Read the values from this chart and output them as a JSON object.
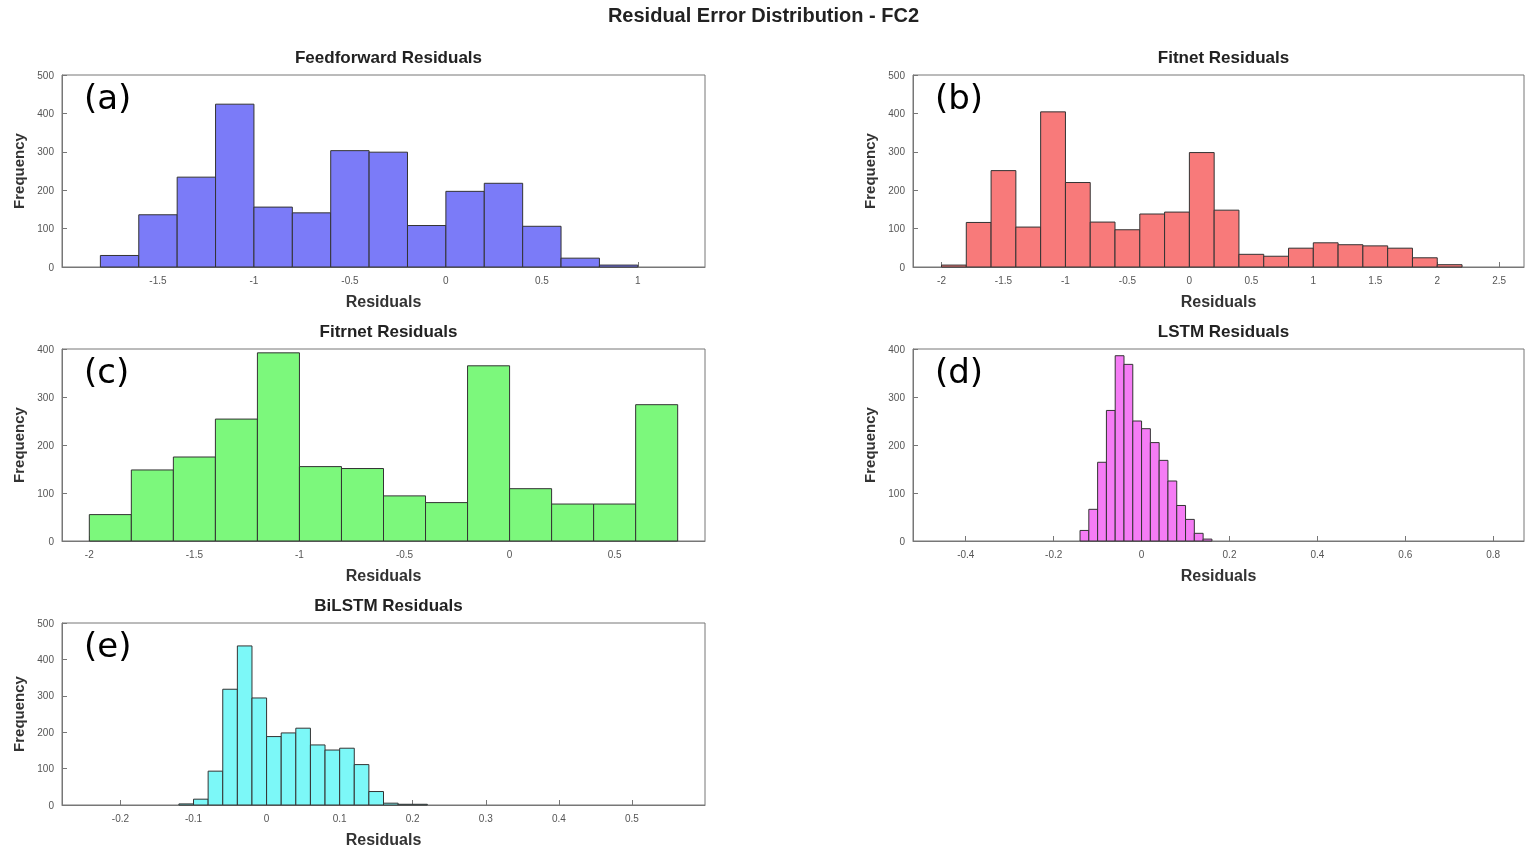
{
  "chart_data": [
    {
      "type": "histogram",
      "title": "Feedforward Residuals",
      "xlabel": "Residuals",
      "ylabel": "Frequency",
      "annotations": [
        "Residual Error Distribution - FC2",
        "(a)"
      ],
      "bins": [
        -1.8,
        -1.6,
        -1.4,
        -1.2,
        -1.0,
        -0.8,
        -0.6,
        -0.4,
        -0.2,
        0,
        0.2,
        0.4,
        0.6,
        0.8,
        1.0
      ],
      "values": [
        30,
        136,
        234,
        424,
        156,
        141,
        303,
        299,
        108,
        197,
        218,
        106,
        23,
        5
      ],
      "color": "#7b7bf8",
      "xlim": [
        -2,
        1.35
      ],
      "xticks": [
        -1.5,
        -1,
        -0.5,
        0,
        0.5,
        1
      ],
      "ylim": [
        0,
        500
      ],
      "yticks": [
        0,
        100,
        200,
        300,
        400,
        500
      ],
      "grid": false
    },
    {
      "type": "histogram",
      "title": "Fitnet Residuals",
      "xlabel": "Residuals",
      "ylabel": "Frequency",
      "annotations": [
        "(b)"
      ],
      "bins": [
        -2,
        -1.8,
        -1.6,
        -1.4,
        -1.2,
        -1.0,
        -0.8,
        -0.6,
        -0.4,
        -0.2,
        0,
        0.2,
        0.4,
        0.6,
        0.8,
        1.0,
        1.2,
        1.4,
        1.6,
        1.8,
        2.0,
        2.2
      ],
      "values": [
        5,
        116,
        251,
        104,
        404,
        220,
        117,
        97,
        138,
        143,
        298,
        148,
        33,
        28,
        49,
        63,
        58,
        55,
        49,
        24,
        6
      ],
      "color": "#f87a7a",
      "xlim": [
        -2.23,
        2.7
      ],
      "xticks": [
        -2,
        -1.5,
        -1,
        -0.5,
        0,
        0.5,
        1,
        1.5,
        2,
        2.5
      ],
      "ylim": [
        0,
        500
      ],
      "yticks": [
        0,
        100,
        200,
        300,
        400,
        500
      ],
      "grid": false
    },
    {
      "type": "histogram",
      "title": "Fitrnet Residuals",
      "xlabel": "Residuals",
      "ylabel": "Frequency",
      "annotations": [
        "(c)"
      ],
      "bins": [
        -2,
        -1.8,
        -1.6,
        -1.4,
        -1.2,
        -1.0,
        -0.8,
        -0.6,
        -0.4,
        -0.2,
        0,
        0.2,
        0.4,
        0.6,
        0.8
      ],
      "values": [
        55,
        148,
        175,
        254,
        392,
        155,
        151,
        94,
        80,
        365,
        109,
        77,
        77,
        284
      ],
      "color": "#7cf87c",
      "xlim": [
        -2.13,
        0.93
      ],
      "xticks": [
        -2,
        -1.5,
        -1,
        -0.5,
        0,
        0.5
      ],
      "ylim": [
        0,
        400
      ],
      "yticks": [
        0,
        100,
        200,
        300,
        400
      ],
      "grid": false
    },
    {
      "type": "histogram",
      "title": "LSTM Residuals",
      "xlabel": "Residuals",
      "ylabel": "Frequency",
      "annotations": [
        "(d)"
      ],
      "bins": [
        -0.14,
        -0.12,
        -0.1,
        -0.08,
        -0.06,
        -0.04,
        -0.02,
        0,
        0.02,
        0.04,
        0.06,
        0.08,
        0.1,
        0.12,
        0.14,
        0.16
      ],
      "values": [
        22,
        66,
        164,
        272,
        386,
        368,
        250,
        234,
        205,
        168,
        125,
        74,
        45,
        16,
        4
      ],
      "color": "#f57cf5",
      "xlim": [
        -0.52,
        0.87
      ],
      "xticks": [
        -0.4,
        -0.2,
        0,
        0.2,
        0.4,
        0.6,
        0.8
      ],
      "ylim": [
        0,
        400
      ],
      "yticks": [
        0,
        100,
        200,
        300,
        400
      ],
      "grid": false
    },
    {
      "type": "histogram",
      "title": "BiLSTM Residuals",
      "xlabel": "Residuals",
      "ylabel": "Frequency",
      "annotations": [
        "(e)"
      ],
      "bins": [
        -0.12,
        -0.1,
        -0.08,
        -0.06,
        -0.04,
        -0.02,
        0,
        0.02,
        0.04,
        0.06,
        0.08,
        0.1,
        0.12,
        0.14,
        0.16,
        0.18,
        0.2,
        0.22
      ],
      "values": [
        3,
        16,
        93,
        318,
        437,
        294,
        188,
        198,
        211,
        165,
        151,
        156,
        111,
        37,
        5,
        2,
        2
      ],
      "color": "#7cf8f8",
      "xlim": [
        -0.28,
        0.6
      ],
      "xticks": [
        -0.2,
        -0.1,
        0,
        0.1,
        0.2,
        0.3,
        0.4,
        0.5
      ],
      "ylim": [
        0,
        500
      ],
      "yticks": [
        0,
        100,
        200,
        300,
        400,
        500
      ],
      "grid": false
    }
  ]
}
